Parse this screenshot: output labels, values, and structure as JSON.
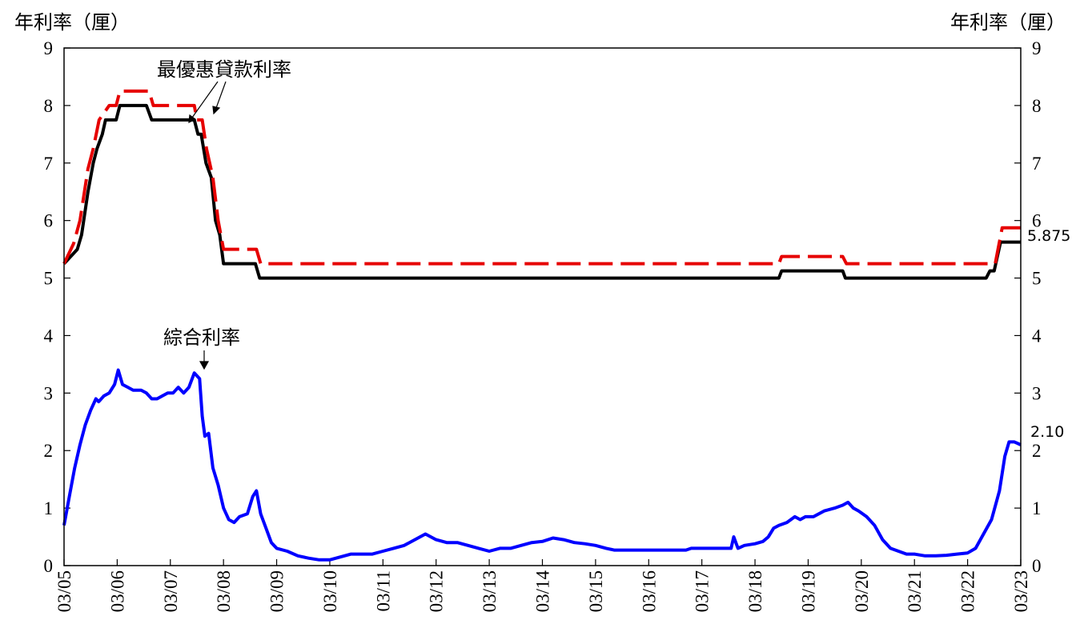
{
  "chart_data": {
    "type": "line",
    "ylabel_left": "年利率（厘）",
    "ylabel_right": "年利率（厘）",
    "ylim": [
      0,
      9
    ],
    "yticks": [
      0,
      1,
      2,
      3,
      4,
      5,
      6,
      7,
      8,
      9
    ],
    "xlim": [
      2005,
      2023
    ],
    "xticks": [
      {
        "x": 2005,
        "label": "03/05"
      },
      {
        "x": 2006,
        "label": "03/06"
      },
      {
        "x": 2007,
        "label": "03/07"
      },
      {
        "x": 2008,
        "label": "03/08"
      },
      {
        "x": 2009,
        "label": "03/09"
      },
      {
        "x": 2010,
        "label": "03/10"
      },
      {
        "x": 2011,
        "label": "03/11"
      },
      {
        "x": 2012,
        "label": "03/12"
      },
      {
        "x": 2013,
        "label": "03/13"
      },
      {
        "x": 2014,
        "label": "03/14"
      },
      {
        "x": 2015,
        "label": "03/15"
      },
      {
        "x": 2016,
        "label": "03/16"
      },
      {
        "x": 2017,
        "label": "03/17"
      },
      {
        "x": 2018,
        "label": "03/18"
      },
      {
        "x": 2019,
        "label": "03/19"
      },
      {
        "x": 2020,
        "label": "03/20"
      },
      {
        "x": 2021,
        "label": "03/21"
      },
      {
        "x": 2022,
        "label": "03/22"
      },
      {
        "x": 2023,
        "label": "03/23"
      }
    ],
    "annotations": {
      "prime": "最優惠貸款利率",
      "composite": "綜合利率",
      "prime_end_value": "5.875",
      "composite_end_value": "2.10"
    },
    "series": [
      {
        "color": "#000000",
        "style": "solid",
        "points": [
          [
            2005.0,
            5.25
          ],
          [
            2005.25,
            5.5
          ],
          [
            2005.33,
            5.75
          ],
          [
            2005.45,
            6.5
          ],
          [
            2005.55,
            7.0
          ],
          [
            2005.62,
            7.25
          ],
          [
            2005.72,
            7.5
          ],
          [
            2005.78,
            7.75
          ],
          [
            2005.98,
            7.75
          ],
          [
            2006.05,
            8.0
          ],
          [
            2006.55,
            8.0
          ],
          [
            2006.65,
            7.75
          ],
          [
            2007.45,
            7.75
          ],
          [
            2007.52,
            7.5
          ],
          [
            2007.58,
            7.5
          ],
          [
            2007.67,
            7.0
          ],
          [
            2007.77,
            6.75
          ],
          [
            2007.85,
            6.0
          ],
          [
            2007.93,
            5.75
          ],
          [
            2008.0,
            5.25
          ],
          [
            2008.6,
            5.25
          ],
          [
            2008.68,
            5.0
          ],
          [
            2018.45,
            5.0
          ],
          [
            2018.5,
            5.125
          ],
          [
            2019.65,
            5.125
          ],
          [
            2019.7,
            5.0
          ],
          [
            2022.35,
            5.0
          ],
          [
            2022.42,
            5.125
          ],
          [
            2022.5,
            5.125
          ],
          [
            2022.62,
            5.625
          ],
          [
            2023.0,
            5.625
          ]
        ]
      },
      {
        "color": "#e60000",
        "style": "dashed",
        "points": [
          [
            2005.0,
            5.25
          ],
          [
            2005.18,
            5.6
          ],
          [
            2005.3,
            6.0
          ],
          [
            2005.45,
            6.9
          ],
          [
            2005.55,
            7.25
          ],
          [
            2005.66,
            7.75
          ],
          [
            2005.85,
            8.0
          ],
          [
            2005.98,
            8.0
          ],
          [
            2006.05,
            8.25
          ],
          [
            2006.6,
            8.25
          ],
          [
            2006.68,
            8.0
          ],
          [
            2007.45,
            8.0
          ],
          [
            2007.5,
            7.75
          ],
          [
            2007.6,
            7.75
          ],
          [
            2007.68,
            7.25
          ],
          [
            2007.8,
            6.75
          ],
          [
            2007.9,
            6.0
          ],
          [
            2008.0,
            5.5
          ],
          [
            2008.62,
            5.5
          ],
          [
            2008.7,
            5.25
          ],
          [
            2018.45,
            5.25
          ],
          [
            2018.5,
            5.375
          ],
          [
            2019.65,
            5.375
          ],
          [
            2019.72,
            5.25
          ],
          [
            2022.35,
            5.25
          ],
          [
            2022.52,
            5.25
          ],
          [
            2022.65,
            5.875
          ],
          [
            2023.0,
            5.875
          ]
        ]
      },
      {
        "color": "#0000ff",
        "style": "solid",
        "points": [
          [
            2005.0,
            0.7
          ],
          [
            2005.1,
            1.2
          ],
          [
            2005.2,
            1.7
          ],
          [
            2005.3,
            2.1
          ],
          [
            2005.4,
            2.45
          ],
          [
            2005.5,
            2.7
          ],
          [
            2005.6,
            2.9
          ],
          [
            2005.65,
            2.85
          ],
          [
            2005.75,
            2.95
          ],
          [
            2005.85,
            3.0
          ],
          [
            2005.95,
            3.15
          ],
          [
            2006.02,
            3.4
          ],
          [
            2006.1,
            3.15
          ],
          [
            2006.2,
            3.1
          ],
          [
            2006.3,
            3.05
          ],
          [
            2006.45,
            3.05
          ],
          [
            2006.55,
            3.0
          ],
          [
            2006.65,
            2.9
          ],
          [
            2006.75,
            2.9
          ],
          [
            2006.85,
            2.95
          ],
          [
            2006.95,
            3.0
          ],
          [
            2007.05,
            3.0
          ],
          [
            2007.15,
            3.1
          ],
          [
            2007.25,
            3.0
          ],
          [
            2007.35,
            3.1
          ],
          [
            2007.45,
            3.35
          ],
          [
            2007.55,
            3.25
          ],
          [
            2007.6,
            2.6
          ],
          [
            2007.65,
            2.25
          ],
          [
            2007.72,
            2.3
          ],
          [
            2007.8,
            1.7
          ],
          [
            2007.9,
            1.4
          ],
          [
            2008.0,
            1.0
          ],
          [
            2008.1,
            0.8
          ],
          [
            2008.2,
            0.75
          ],
          [
            2008.3,
            0.85
          ],
          [
            2008.45,
            0.9
          ],
          [
            2008.55,
            1.2
          ],
          [
            2008.62,
            1.3
          ],
          [
            2008.7,
            0.9
          ],
          [
            2008.8,
            0.65
          ],
          [
            2008.9,
            0.4
          ],
          [
            2009.0,
            0.3
          ],
          [
            2009.2,
            0.25
          ],
          [
            2009.4,
            0.17
          ],
          [
            2009.6,
            0.13
          ],
          [
            2009.8,
            0.1
          ],
          [
            2010.0,
            0.1
          ],
          [
            2010.2,
            0.15
          ],
          [
            2010.4,
            0.2
          ],
          [
            2010.6,
            0.2
          ],
          [
            2010.8,
            0.2
          ],
          [
            2011.0,
            0.25
          ],
          [
            2011.2,
            0.3
          ],
          [
            2011.4,
            0.35
          ],
          [
            2011.6,
            0.45
          ],
          [
            2011.8,
            0.55
          ],
          [
            2012.0,
            0.45
          ],
          [
            2012.2,
            0.4
          ],
          [
            2012.4,
            0.4
          ],
          [
            2012.6,
            0.35
          ],
          [
            2012.8,
            0.3
          ],
          [
            2013.0,
            0.25
          ],
          [
            2013.2,
            0.3
          ],
          [
            2013.4,
            0.3
          ],
          [
            2013.6,
            0.35
          ],
          [
            2013.8,
            0.4
          ],
          [
            2014.0,
            0.42
          ],
          [
            2014.2,
            0.48
          ],
          [
            2014.4,
            0.45
          ],
          [
            2014.6,
            0.4
          ],
          [
            2014.8,
            0.38
          ],
          [
            2015.0,
            0.35
          ],
          [
            2015.2,
            0.3
          ],
          [
            2015.35,
            0.27
          ],
          [
            2016.0,
            0.27
          ],
          [
            2016.7,
            0.27
          ],
          [
            2016.8,
            0.3
          ],
          [
            2017.4,
            0.3
          ],
          [
            2017.55,
            0.3
          ],
          [
            2017.6,
            0.5
          ],
          [
            2017.68,
            0.3
          ],
          [
            2017.8,
            0.35
          ],
          [
            2018.0,
            0.38
          ],
          [
            2018.15,
            0.42
          ],
          [
            2018.25,
            0.5
          ],
          [
            2018.35,
            0.65
          ],
          [
            2018.45,
            0.7
          ],
          [
            2018.6,
            0.75
          ],
          [
            2018.75,
            0.85
          ],
          [
            2018.85,
            0.8
          ],
          [
            2018.95,
            0.85
          ],
          [
            2019.1,
            0.85
          ],
          [
            2019.3,
            0.95
          ],
          [
            2019.5,
            1.0
          ],
          [
            2019.65,
            1.05
          ],
          [
            2019.75,
            1.1
          ],
          [
            2019.85,
            1.0
          ],
          [
            2019.95,
            0.95
          ],
          [
            2020.1,
            0.85
          ],
          [
            2020.25,
            0.7
          ],
          [
            2020.4,
            0.45
          ],
          [
            2020.55,
            0.3
          ],
          [
            2020.7,
            0.25
          ],
          [
            2020.85,
            0.2
          ],
          [
            2021.0,
            0.2
          ],
          [
            2021.2,
            0.17
          ],
          [
            2021.4,
            0.17
          ],
          [
            2021.6,
            0.18
          ],
          [
            2021.8,
            0.2
          ],
          [
            2022.0,
            0.22
          ],
          [
            2022.15,
            0.3
          ],
          [
            2022.3,
            0.55
          ],
          [
            2022.45,
            0.8
          ],
          [
            2022.6,
            1.3
          ],
          [
            2022.7,
            1.9
          ],
          [
            2022.78,
            2.15
          ],
          [
            2022.88,
            2.15
          ],
          [
            2023.0,
            2.1
          ]
        ]
      }
    ]
  }
}
